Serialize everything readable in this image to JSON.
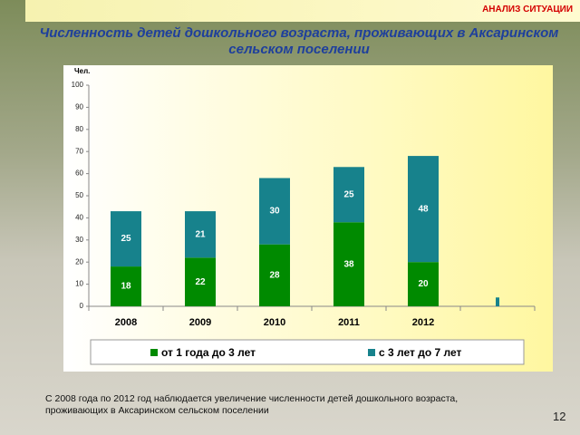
{
  "header": {
    "section": "АНАЛИЗ СИТУАЦИИ",
    "title": "Численность детей дошкольного возраста, проживающих в Аксаринском сельском поселении"
  },
  "chart_data": {
    "type": "bar",
    "stacked": true,
    "y_label": "Чел.",
    "categories": [
      "2008",
      "2009",
      "2010",
      "2011",
      "2012",
      null
    ],
    "series": [
      {
        "name": "от 1 года до 3 лет",
        "color": "#008a00",
        "values": [
          18,
          22,
          28,
          38,
          20,
          0
        ]
      },
      {
        "name": "с 3 лет до 7 лет",
        "color": "#17828c",
        "values": [
          25,
          21,
          30,
          25,
          48,
          4
        ]
      }
    ],
    "ylim": [
      0,
      100
    ],
    "yticks": [
      0,
      10,
      20,
      30,
      40,
      50,
      60,
      70,
      80,
      90,
      100
    ],
    "legend": "bottom"
  },
  "caption": "С 2008 года по 2012 год наблюдается   увеличение численности детей дошкольного возраста, проживающих в  Аксаринском сельском поселении",
  "page_number": "12"
}
